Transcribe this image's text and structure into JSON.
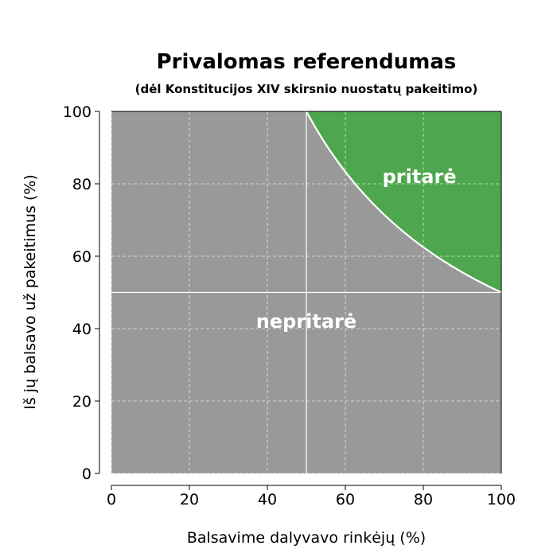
{
  "chart_data": {
    "type": "area",
    "title": "Privalomas referendumas",
    "subtitle": "(dėl Konstitucijos XIV skirsnio nuostatų pakeitimo)",
    "xlabel": "Balsavime dalyvavo rinkėjų (%)",
    "ylabel": "Iš jų balsavo už pakeitimus (%)",
    "xlim": [
      0,
      100
    ],
    "ylim": [
      0,
      100
    ],
    "xticks": [
      "0",
      "20",
      "40",
      "60",
      "80",
      "100"
    ],
    "yticks": [
      "0",
      "20",
      "40",
      "60",
      "80",
      "100"
    ],
    "grid": true,
    "regions": [
      {
        "name": "nepritarė",
        "color": "#999999"
      },
      {
        "name": "pritarė",
        "color": "#4ea64e"
      }
    ],
    "boundary": {
      "description": "y = 5000 / x (yes votes ≥ 50% of all voters)",
      "x": [
        50,
        55,
        60,
        65,
        70,
        75,
        80,
        85,
        90,
        95,
        100
      ],
      "y": [
        100,
        90.9,
        83.3,
        76.9,
        71.4,
        66.7,
        62.5,
        58.8,
        55.6,
        52.6,
        50
      ]
    },
    "reference_lines": {
      "x": 50,
      "y": 50
    }
  }
}
